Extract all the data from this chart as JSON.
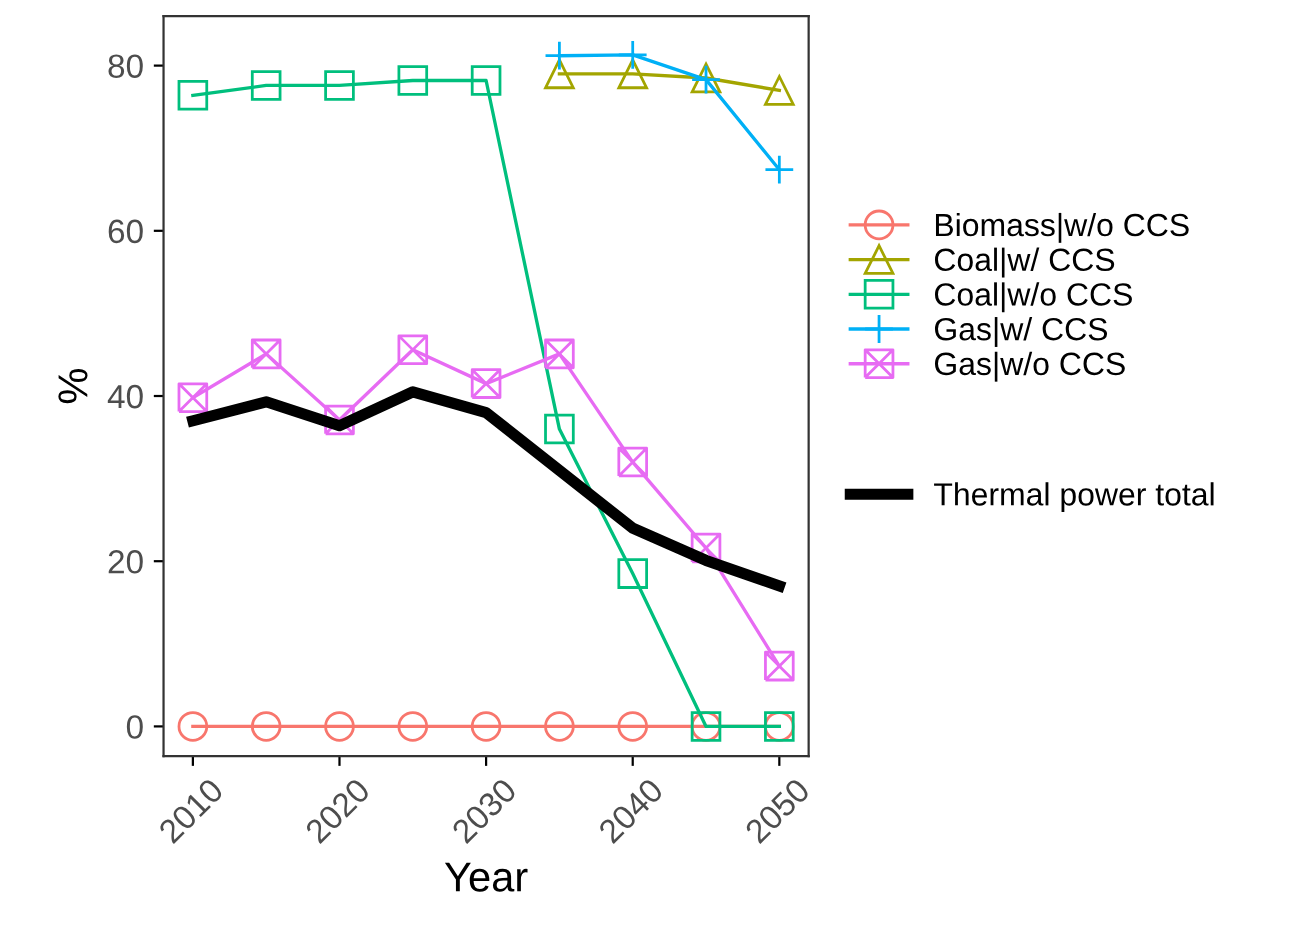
{
  "chart_data": {
    "type": "line",
    "xlabel": "Year",
    "ylabel": "%",
    "xlim": [
      2008,
      2052
    ],
    "xticks": [
      2010,
      2020,
      2030,
      2040,
      2050
    ],
    "ylim": [
      -3.6,
      86
    ],
    "yticks": [
      0,
      20,
      40,
      60,
      80
    ],
    "grid": false,
    "legend": "right",
    "series": [
      {
        "name": "Biomass|w/o CCS",
        "color": "#f8766d",
        "marker": "circle",
        "x": [
          2010,
          2015,
          2020,
          2025,
          2030,
          2035,
          2040,
          2045,
          2050
        ],
        "values": [
          0,
          0,
          0,
          0,
          0,
          0,
          0,
          0,
          0
        ]
      },
      {
        "name": "Coal|w/ CCS",
        "color": "#a3a500",
        "marker": "triangle",
        "x": [
          2035,
          2040,
          2045,
          2050
        ],
        "values": [
          79,
          79,
          78.5,
          77
        ]
      },
      {
        "name": "Coal|w/o CCS",
        "color": "#00bf7d",
        "marker": "square",
        "x": [
          2010,
          2015,
          2020,
          2025,
          2030,
          2035,
          2040,
          2045,
          2050
        ],
        "values": [
          76.4,
          77.6,
          77.6,
          78.2,
          78.2,
          36,
          18.5,
          0,
          0
        ]
      },
      {
        "name": "Gas|w/ CCS",
        "color": "#00b0f6",
        "marker": "plus",
        "x": [
          2035,
          2040,
          2045,
          2050
        ],
        "values": [
          81.2,
          81.3,
          78.3,
          67.4
        ]
      },
      {
        "name": "Gas|w/o CCS",
        "color": "#e76bf3",
        "marker": "cross",
        "x": [
          2010,
          2015,
          2020,
          2025,
          2030,
          2035,
          2040,
          2045,
          2050
        ],
        "values": [
          39.8,
          45.1,
          37.1,
          45.6,
          41.5,
          45.1,
          32,
          21.6,
          7.3
        ]
      },
      {
        "name": "Thermal power total",
        "color": "#000000",
        "marker": "none",
        "x": [
          2010,
          2015,
          2020,
          2025,
          2030,
          2035,
          2040,
          2045,
          2050
        ],
        "values": [
          37,
          39.3,
          36.4,
          40.5,
          38,
          31,
          24,
          20.1,
          17
        ]
      }
    ]
  }
}
